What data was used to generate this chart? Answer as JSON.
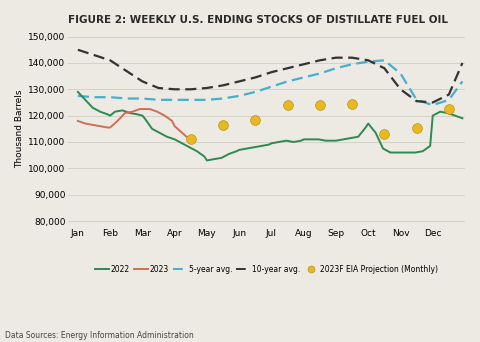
{
  "title": "FIGURE 2: WEEKLY U.S. ENDING STOCKS OF DISTILLATE FUEL OIL",
  "ylabel": "Thousand Barrels",
  "source": "Data Sources: Energy Information Administration",
  "background_color": "#ede9e3",
  "ylim": [
    78000,
    152000
  ],
  "yticks": [
    80000,
    90000,
    100000,
    110000,
    120000,
    130000,
    140000,
    150000
  ],
  "months": [
    "Jan",
    "Feb",
    "Mar",
    "Apr",
    "May",
    "Jun",
    "Jul",
    "Aug",
    "Sep",
    "Oct",
    "Nov",
    "Dec"
  ],
  "line_2022_x": [
    0.0,
    0.23,
    0.46,
    0.69,
    0.92,
    1.0,
    1.15,
    1.38,
    1.61,
    1.84,
    2.0,
    2.07,
    2.3,
    2.53,
    2.76,
    3.0,
    3.23,
    3.46,
    3.69,
    3.92,
    4.0,
    4.23,
    4.46,
    4.69,
    4.92,
    5.0,
    5.23,
    5.46,
    5.69,
    5.92,
    6.0,
    6.23,
    6.46,
    6.69,
    6.92,
    7.0,
    7.23,
    7.46,
    7.69,
    7.92,
    8.0,
    8.23,
    8.46,
    8.69,
    8.92,
    9.0,
    9.23,
    9.46,
    9.69,
    9.92,
    10.0,
    10.23,
    10.46,
    10.69,
    10.92,
    11.0,
    11.23,
    11.46,
    11.69,
    11.92
  ],
  "line_2022_y": [
    129000,
    126000,
    123000,
    121500,
    120500,
    120000,
    121500,
    122000,
    121000,
    120500,
    120000,
    119000,
    115000,
    113500,
    112000,
    111000,
    109500,
    108000,
    106500,
    104500,
    103000,
    103500,
    104000,
    105500,
    106500,
    107000,
    107500,
    108000,
    108500,
    109000,
    109500,
    110000,
    110500,
    110000,
    110500,
    111000,
    111000,
    111000,
    110500,
    110500,
    110500,
    111000,
    111500,
    112000,
    115500,
    117000,
    113500,
    107500,
    106000,
    106000,
    106000,
    106000,
    106000,
    106500,
    108500,
    120000,
    121500,
    121000,
    120000,
    119000
  ],
  "line_2023_x": [
    0.0,
    0.23,
    0.46,
    0.69,
    0.92,
    1.0,
    1.23,
    1.46,
    1.69,
    1.92,
    2.0,
    2.23,
    2.46,
    2.69,
    2.92,
    3.0,
    3.23,
    3.46
  ],
  "line_2023_y": [
    118000,
    117000,
    116500,
    116000,
    115500,
    115500,
    118000,
    121000,
    121500,
    122500,
    122500,
    122500,
    121500,
    120000,
    118000,
    116000,
    113500,
    111000
  ],
  "line_5yr_x": [
    0.0,
    0.5,
    1.0,
    1.5,
    2.0,
    2.5,
    3.0,
    3.5,
    4.0,
    4.5,
    5.0,
    5.5,
    6.0,
    6.5,
    7.0,
    7.5,
    8.0,
    8.5,
    9.0,
    9.5,
    10.0,
    10.5,
    11.0,
    11.5,
    11.92
  ],
  "line_5yr_y": [
    127500,
    127000,
    127000,
    126500,
    126500,
    126000,
    126000,
    126000,
    126000,
    126500,
    127500,
    129000,
    131000,
    133000,
    134500,
    136000,
    138000,
    139500,
    140500,
    141000,
    136000,
    126000,
    124000,
    126000,
    133000
  ],
  "line_10yr_x": [
    0.0,
    0.5,
    1.0,
    1.5,
    2.0,
    2.5,
    3.0,
    3.5,
    4.0,
    4.5,
    5.0,
    5.5,
    6.0,
    6.5,
    7.0,
    7.5,
    8.0,
    8.5,
    9.0,
    9.5,
    10.0,
    10.5,
    11.0,
    11.5,
    11.92
  ],
  "line_10yr_y": [
    145000,
    143000,
    141000,
    137000,
    133000,
    130500,
    130000,
    130000,
    130500,
    131500,
    133000,
    134500,
    136500,
    138000,
    139500,
    141000,
    142000,
    142000,
    141000,
    138000,
    130000,
    125500,
    125000,
    128000,
    140000
  ],
  "proj_x": [
    3.5,
    4.5,
    5.5,
    6.5,
    7.5,
    8.5,
    9.5,
    10.5,
    11.5
  ],
  "proj_y": [
    111000,
    116500,
    118500,
    124000,
    124000,
    124500,
    113000,
    115500,
    122500
  ],
  "color_2022": "#2d8a52",
  "color_2023": "#cc7055",
  "color_5yr": "#45b0cc",
  "color_10yr": "#333333",
  "color_proj": "#e8b820",
  "title_color": "#2a2a2a",
  "grid_color": "#d0ccc6"
}
